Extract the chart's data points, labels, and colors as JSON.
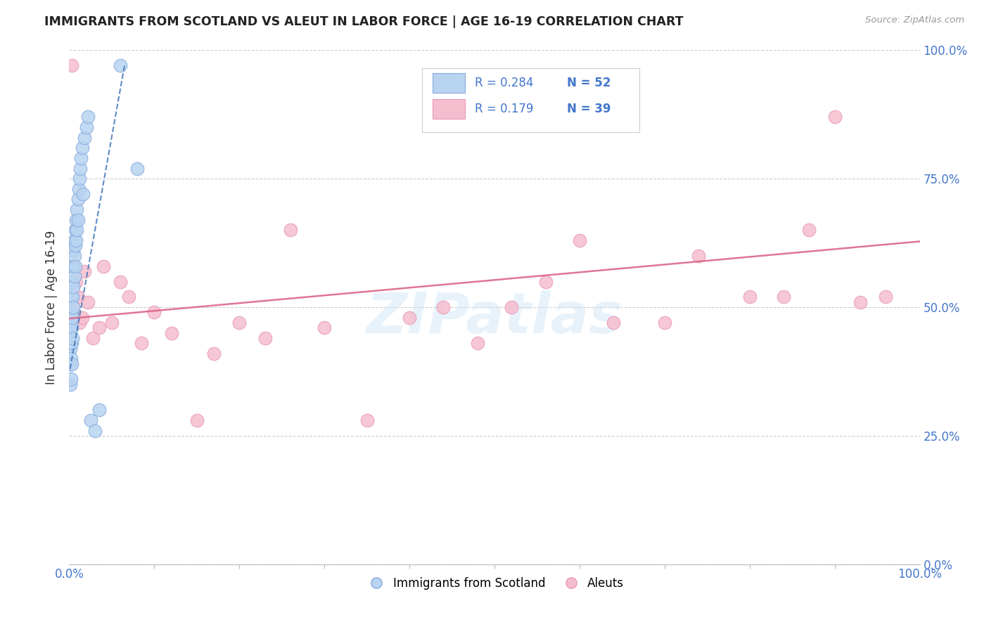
{
  "title": "IMMIGRANTS FROM SCOTLAND VS ALEUT IN LABOR FORCE | AGE 16-19 CORRELATION CHART",
  "source": "Source: ZipAtlas.com",
  "ylabel": "In Labor Force | Age 16-19",
  "blue_R": 0.284,
  "blue_N": 52,
  "pink_R": 0.179,
  "pink_N": 39,
  "blue_label": "Immigrants from Scotland",
  "pink_label": "Aleuts",
  "blue_color": "#b8d4f0",
  "pink_color": "#f5bece",
  "blue_edge": "#88aadd",
  "pink_edge": "#e899b8",
  "trend_blue": "#4477bb",
  "trend_pink": "#dd6688",
  "xlim": [
    0,
    1.0
  ],
  "ylim": [
    0,
    1.0
  ],
  "ytick_vals": [
    0.0,
    0.25,
    0.5,
    0.75,
    1.0
  ],
  "ytick_labels": [
    "0.0%",
    "25.0%",
    "50.0%",
    "75.0%",
    "100.0%"
  ],
  "blue_scatter_x": [
    0.001,
    0.001,
    0.001,
    0.001,
    0.001,
    0.002,
    0.002,
    0.002,
    0.002,
    0.002,
    0.002,
    0.003,
    0.003,
    0.003,
    0.003,
    0.003,
    0.003,
    0.004,
    0.004,
    0.004,
    0.004,
    0.004,
    0.005,
    0.005,
    0.005,
    0.005,
    0.006,
    0.006,
    0.006,
    0.007,
    0.007,
    0.007,
    0.008,
    0.008,
    0.009,
    0.009,
    0.01,
    0.01,
    0.011,
    0.012,
    0.013,
    0.014,
    0.015,
    0.016,
    0.018,
    0.02,
    0.022,
    0.025,
    0.03,
    0.035,
    0.06,
    0.08
  ],
  "blue_scatter_y": [
    0.48,
    0.45,
    0.42,
    0.39,
    0.35,
    0.52,
    0.49,
    0.46,
    0.43,
    0.4,
    0.36,
    0.55,
    0.52,
    0.49,
    0.46,
    0.43,
    0.39,
    0.58,
    0.55,
    0.52,
    0.48,
    0.44,
    0.61,
    0.58,
    0.54,
    0.5,
    0.63,
    0.6,
    0.56,
    0.65,
    0.62,
    0.58,
    0.67,
    0.63,
    0.69,
    0.65,
    0.71,
    0.67,
    0.73,
    0.75,
    0.77,
    0.79,
    0.81,
    0.72,
    0.83,
    0.85,
    0.87,
    0.28,
    0.26,
    0.3,
    0.97,
    0.77
  ],
  "pink_scatter_x": [
    0.003,
    0.005,
    0.008,
    0.01,
    0.012,
    0.015,
    0.018,
    0.022,
    0.028,
    0.035,
    0.04,
    0.05,
    0.06,
    0.07,
    0.085,
    0.1,
    0.12,
    0.15,
    0.17,
    0.2,
    0.23,
    0.26,
    0.3,
    0.35,
    0.4,
    0.44,
    0.48,
    0.52,
    0.56,
    0.6,
    0.64,
    0.7,
    0.74,
    0.8,
    0.84,
    0.87,
    0.9,
    0.93,
    0.96
  ],
  "pink_scatter_y": [
    0.97,
    0.5,
    0.55,
    0.52,
    0.47,
    0.48,
    0.57,
    0.51,
    0.44,
    0.46,
    0.58,
    0.47,
    0.55,
    0.52,
    0.43,
    0.49,
    0.45,
    0.28,
    0.41,
    0.47,
    0.44,
    0.65,
    0.46,
    0.28,
    0.48,
    0.5,
    0.43,
    0.5,
    0.55,
    0.63,
    0.47,
    0.47,
    0.6,
    0.52,
    0.52,
    0.65,
    0.87,
    0.51,
    0.52
  ],
  "pink_trend_x0": 0.0,
  "pink_trend_x1": 1.0,
  "pink_trend_y0": 0.478,
  "pink_trend_y1": 0.628,
  "blue_trend_x0": 0.001,
  "blue_trend_x1": 0.065,
  "blue_trend_y0": 0.38,
  "blue_trend_y1": 0.97
}
